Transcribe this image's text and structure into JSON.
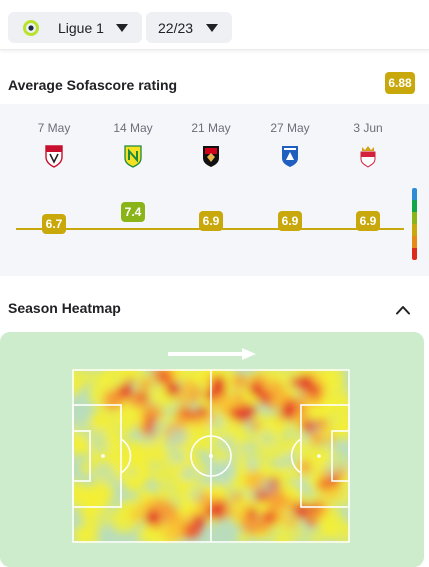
{
  "filters": {
    "league": {
      "label": "Ligue 1",
      "icon": "ligue1-logo-icon"
    },
    "season": {
      "label": "22/23"
    }
  },
  "rating": {
    "title": "Average Sofascore rating",
    "average": "6.88",
    "average_color": "#c9a80c",
    "matches": [
      {
        "date": "7 May",
        "team_icon": "ajaccio-crest-icon",
        "rating": "6.7",
        "value": 6.7,
        "color": "#c9a80c"
      },
      {
        "date": "14 May",
        "team_icon": "nantes-crest-icon",
        "rating": "7.4",
        "value": 7.4,
        "color": "#8ab417"
      },
      {
        "date": "21 May",
        "team_icon": "nice-crest-icon",
        "rating": "6.9",
        "value": 6.9,
        "color": "#c9a80c"
      },
      {
        "date": "27 May",
        "team_icon": "auxerre-crest-icon",
        "rating": "6.9",
        "value": 6.9,
        "color": "#c9a80c"
      },
      {
        "date": "3 Jun",
        "team_icon": "monaco-crest-icon",
        "rating": "6.9",
        "value": 6.9,
        "color": "#c9a80c"
      }
    ],
    "scale_colors": [
      "#2d8cd6",
      "#12a64b",
      "#8ab417",
      "#c9a80c",
      "#e58a17",
      "#dc2b1c"
    ]
  },
  "heatmap": {
    "title": "Season Heatmap",
    "direction": "attacking-right",
    "toggle_icon": "chevron-up-icon",
    "background_color": "#cdeccc"
  }
}
